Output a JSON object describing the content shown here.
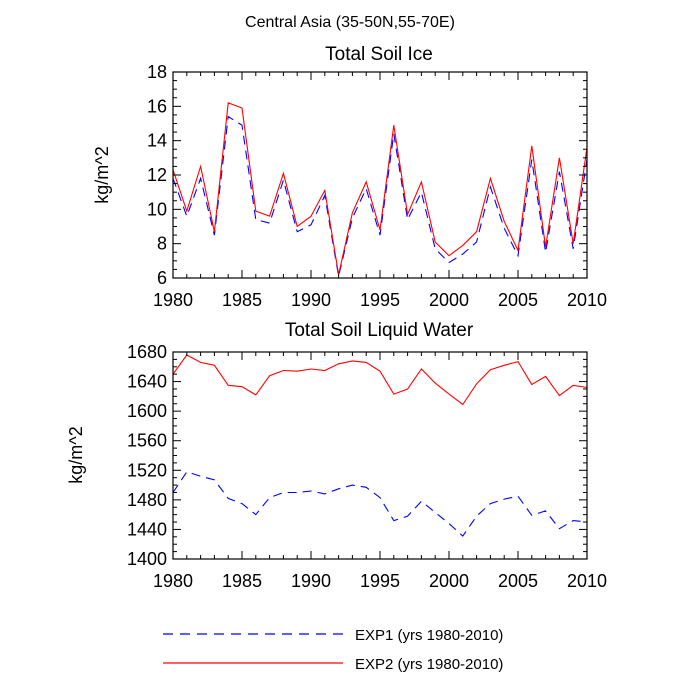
{
  "page": {
    "suptitle": "Central Asia (35-50N,55-70E)"
  },
  "legend": {
    "entries": [
      {
        "label": "EXP1 (yrs 1980-2010)",
        "color": "#0000ff",
        "dash": "dashed"
      },
      {
        "label": "EXP2 (yrs 1980-2010)",
        "color": "#ff0000",
        "dash": "solid"
      }
    ]
  },
  "chart_data": [
    {
      "type": "line",
      "title": "Total Soil Ice",
      "ylabel": "kg/m^2",
      "xlabel": "",
      "xlim": [
        1980,
        2010
      ],
      "ylim": [
        6,
        18
      ],
      "xticks": [
        1980,
        1985,
        1990,
        1995,
        2000,
        2005,
        2010
      ],
      "yticks": [
        6,
        8,
        10,
        12,
        14,
        16,
        18
      ],
      "x": [
        1980,
        1981,
        1982,
        1983,
        1984,
        1985,
        1986,
        1987,
        1988,
        1989,
        1990,
        1991,
        1992,
        1993,
        1994,
        1995,
        1996,
        1997,
        1998,
        1999,
        2000,
        2001,
        2002,
        2003,
        2004,
        2005,
        2006,
        2007,
        2008,
        2009,
        2010
      ],
      "series": [
        {
          "name": "EXP1 (yrs 1980-2010)",
          "color": "#0000ff",
          "dash": "dashed",
          "values": [
            11.8,
            9.6,
            11.8,
            8.5,
            15.4,
            14.9,
            9.4,
            9.2,
            11.7,
            8.7,
            9.1,
            10.8,
            6.1,
            9.5,
            11.2,
            8.5,
            14.4,
            9.4,
            11.0,
            7.7,
            6.9,
            7.4,
            8.1,
            11.3,
            8.9,
            7.3,
            12.9,
            7.5,
            12.2,
            7.7,
            12.9
          ]
        },
        {
          "name": "EXP2 (yrs 1980-2010)",
          "color": "#ff0000",
          "dash": "solid",
          "values": [
            12.3,
            9.9,
            12.5,
            8.7,
            16.2,
            15.9,
            9.9,
            9.6,
            12.1,
            9.0,
            9.6,
            11.1,
            6.2,
            9.8,
            11.6,
            8.8,
            14.9,
            9.7,
            11.6,
            8.1,
            7.3,
            7.9,
            8.7,
            11.8,
            9.3,
            7.6,
            13.7,
            7.8,
            13.0,
            8.0,
            13.6
          ]
        }
      ]
    },
    {
      "type": "line",
      "title": "Total Soil Liquid Water",
      "ylabel": "kg/m^2",
      "xlabel": "",
      "xlim": [
        1980,
        2010
      ],
      "ylim": [
        1400,
        1680
      ],
      "xticks": [
        1980,
        1985,
        1990,
        1995,
        2000,
        2005,
        2010
      ],
      "yticks": [
        1400,
        1440,
        1480,
        1520,
        1560,
        1600,
        1640,
        1680
      ],
      "x": [
        1980,
        1981,
        1982,
        1983,
        1984,
        1985,
        1986,
        1987,
        1988,
        1989,
        1990,
        1991,
        1992,
        1993,
        1994,
        1995,
        1996,
        1997,
        1998,
        1999,
        2000,
        2001,
        2002,
        2003,
        2004,
        2005,
        2006,
        2007,
        2008,
        2009,
        2010
      ],
      "series": [
        {
          "name": "EXP1 (yrs 1980-2010)",
          "color": "#0000ff",
          "dash": "dashed",
          "values": [
            1490,
            1518,
            1512,
            1507,
            1482,
            1475,
            1460,
            1483,
            1490,
            1490,
            1492,
            1488,
            1495,
            1500,
            1497,
            1483,
            1452,
            1458,
            1478,
            1463,
            1448,
            1431,
            1458,
            1475,
            1481,
            1485,
            1459,
            1465,
            1441,
            1452,
            1450
          ]
        },
        {
          "name": "EXP2 (yrs 1980-2010)",
          "color": "#ff0000",
          "dash": "solid",
          "values": [
            1650,
            1676,
            1666,
            1662,
            1635,
            1633,
            1622,
            1648,
            1655,
            1654,
            1657,
            1655,
            1664,
            1668,
            1666,
            1654,
            1623,
            1630,
            1657,
            1638,
            1623,
            1609,
            1637,
            1656,
            1662,
            1667,
            1636,
            1647,
            1621,
            1635,
            1632
          ]
        }
      ]
    }
  ]
}
